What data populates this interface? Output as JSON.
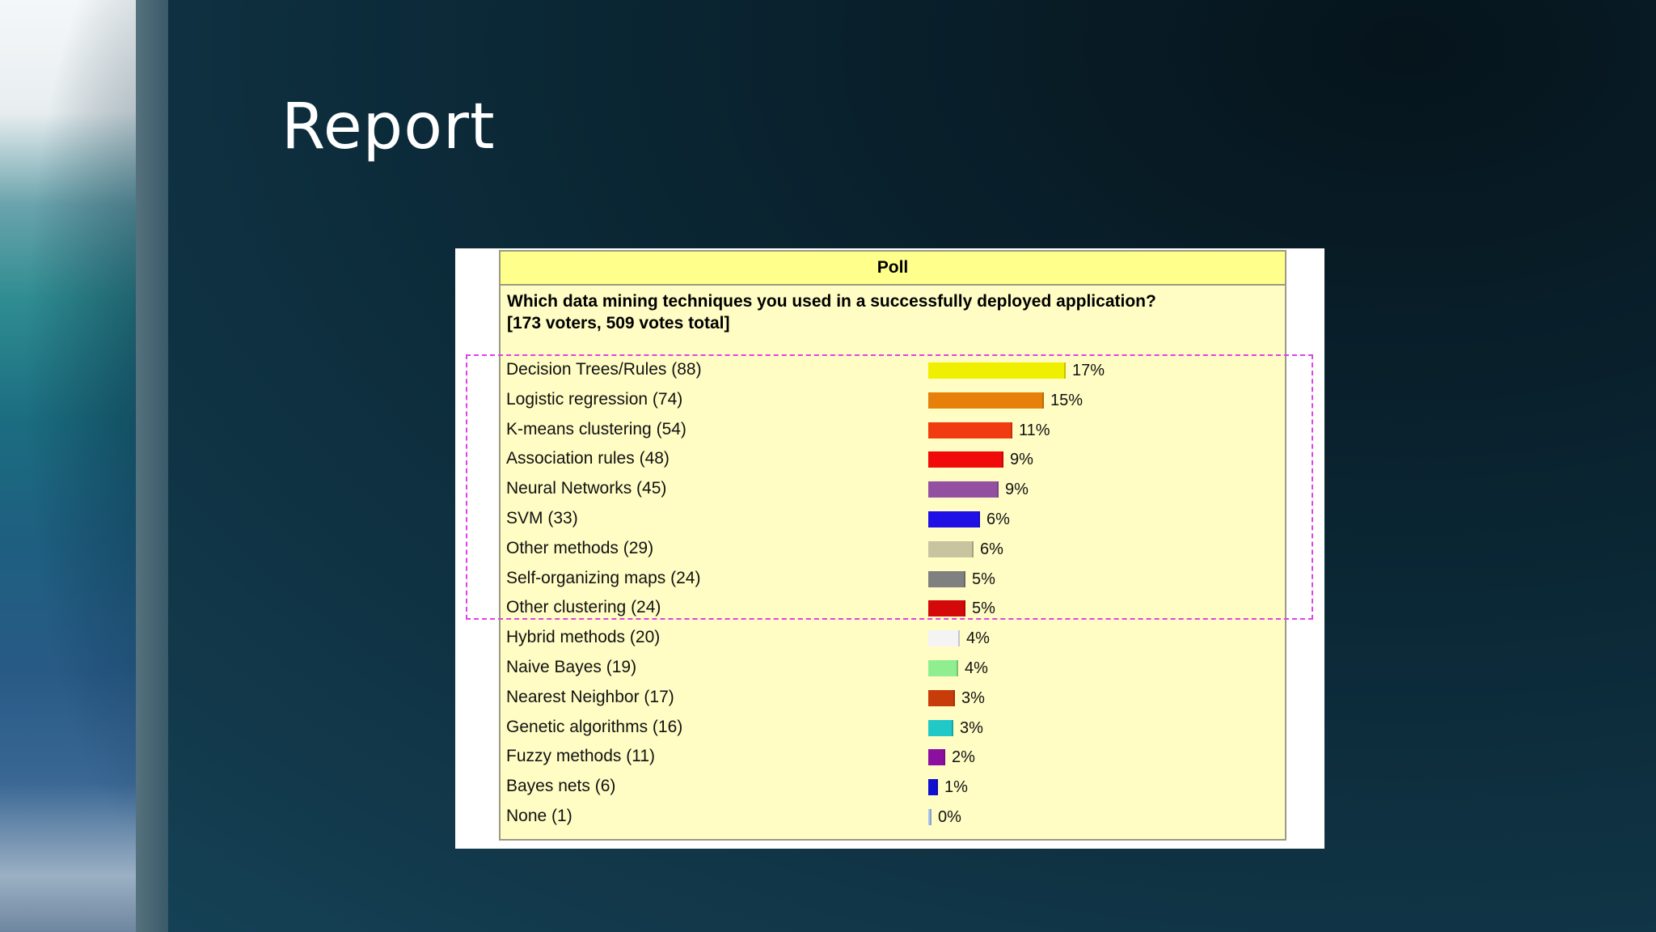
{
  "slide": {
    "title": "Report"
  },
  "chart_data": {
    "type": "bar",
    "orientation": "horizontal",
    "title": "Poll",
    "question": "Which data mining techniques you used in a successfully deployed application?",
    "voters_line": "[173 voters, 509 votes total]",
    "highlight": "dashed magenta box around first nine rows",
    "categories": [
      "Decision Trees/Rules (88)",
      "Logistic regression (74)",
      "K-means clustering (54)",
      "Association rules (48)",
      "Neural Networks (45)",
      "SVM (33)",
      "Other methods (29)",
      "Self-organizing maps (24)",
      "Other clustering (24)",
      "Hybrid methods (20)",
      "Naive Bayes (19)",
      "Nearest Neighbor (17)",
      "Genetic algorithms (16)",
      "Fuzzy methods (11)",
      "Bayes nets (6)",
      "None (1)"
    ],
    "counts": [
      88,
      74,
      54,
      48,
      45,
      33,
      29,
      24,
      24,
      20,
      19,
      17,
      16,
      11,
      6,
      1
    ],
    "percent_labels": [
      "17%",
      "15%",
      "11%",
      "9%",
      "9%",
      "6%",
      "6%",
      "5%",
      "5%",
      "4%",
      "4%",
      "3%",
      "3%",
      "2%",
      "1%",
      "0%"
    ],
    "colors": [
      "#f0ef00",
      "#e6800a",
      "#f03c10",
      "#f00a0a",
      "#9450a0",
      "#2010e6",
      "#c8c4a0",
      "#808080",
      "#d40a0a",
      "#f4f4f4",
      "#90ee90",
      "#c83c0a",
      "#20c8c8",
      "#8c10a0",
      "#1010d0",
      "#a8c8f0"
    ]
  }
}
